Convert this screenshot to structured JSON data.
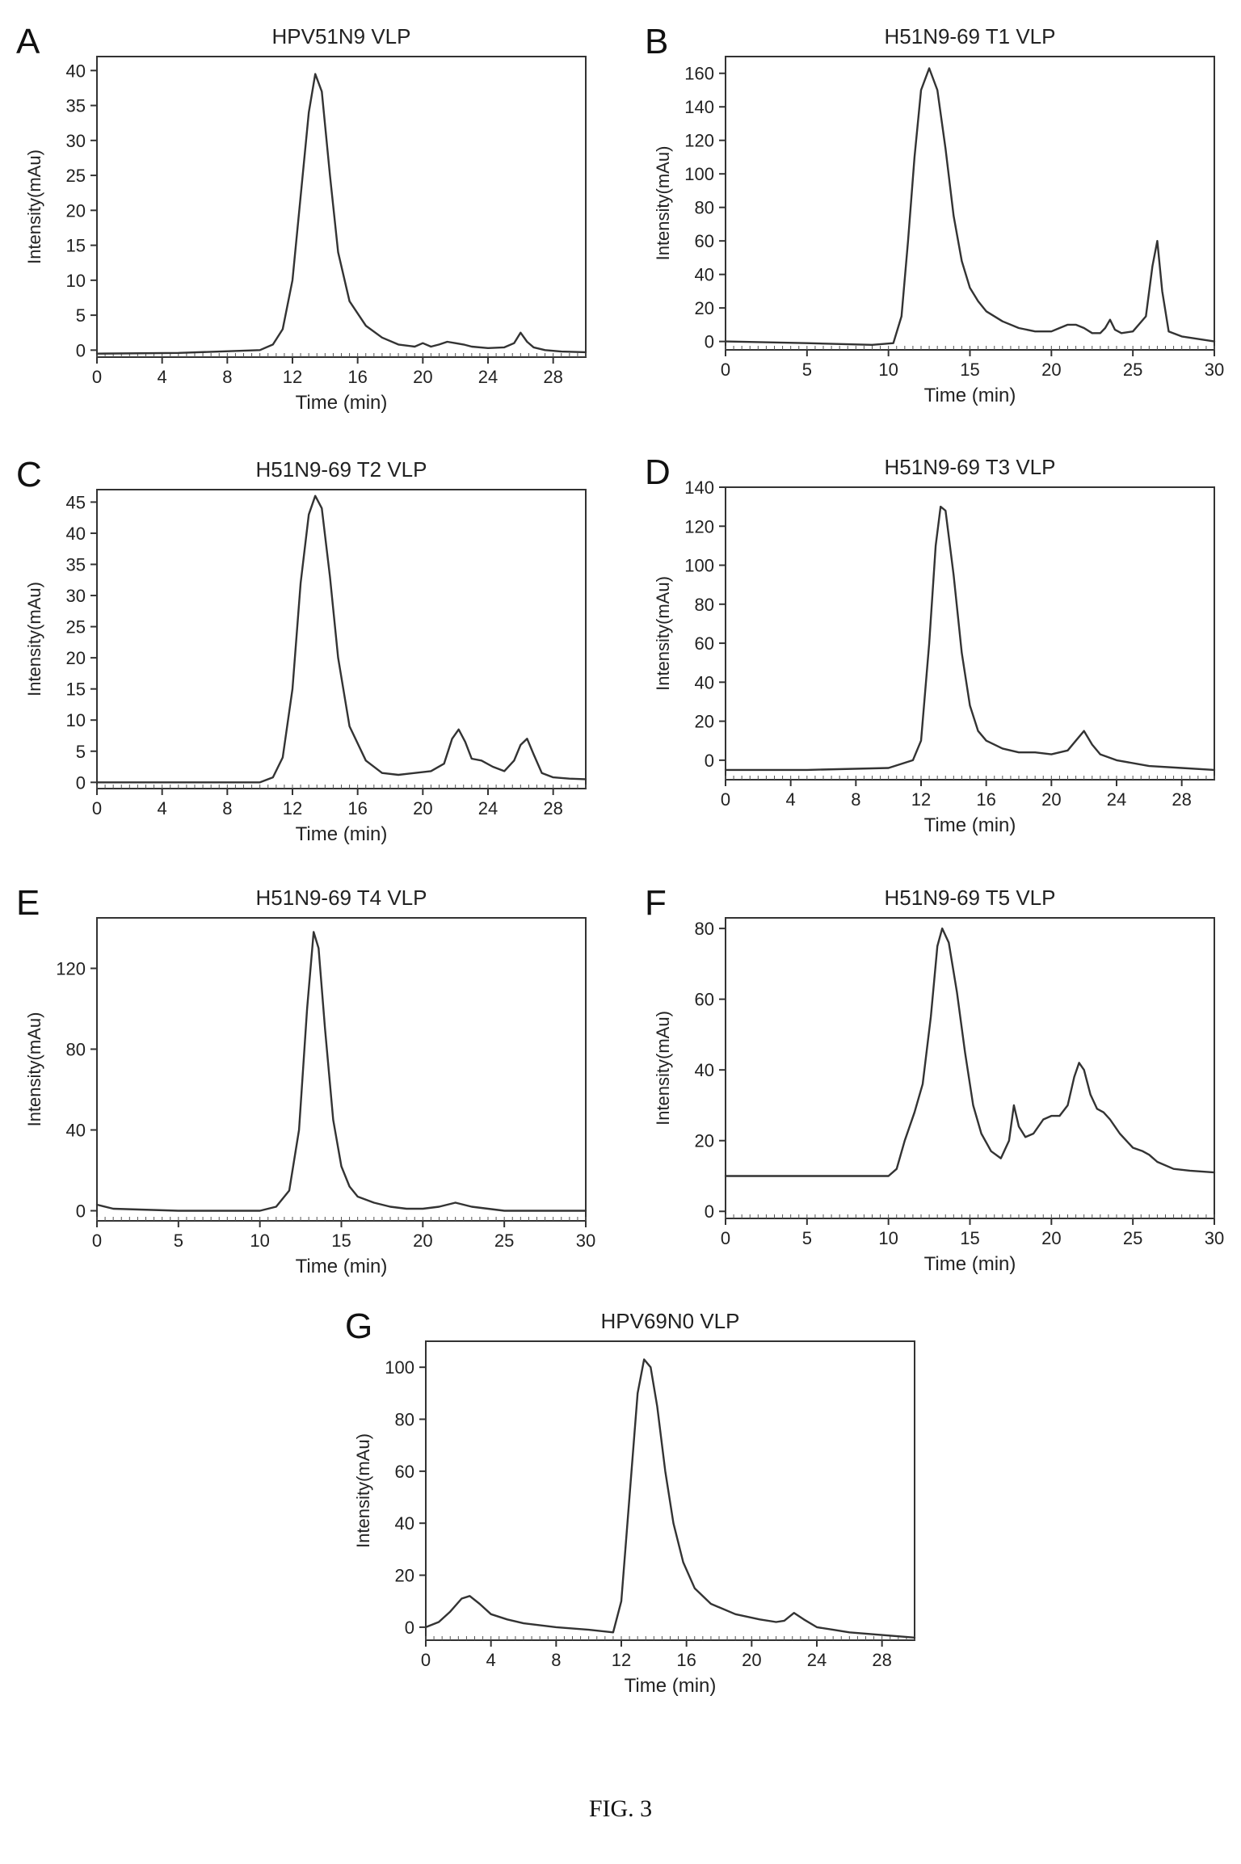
{
  "figure_caption": "FIG. 3",
  "chart_data": [
    {
      "letter": "A",
      "type": "line",
      "title": "HPV51N9 VLP",
      "xlabel": "Time (min)",
      "ylabel": "Intensity(mAu)",
      "xlim": [
        0,
        30
      ],
      "ylim": [
        -1,
        42
      ],
      "xticks": [
        0,
        4,
        8,
        12,
        16,
        20,
        24,
        28
      ],
      "yticks": [
        0,
        5,
        10,
        15,
        20,
        25,
        30,
        35,
        40
      ],
      "series": [
        {
          "x": [
            0,
            5,
            10,
            10.8,
            11.4,
            12,
            12.5,
            13,
            13.4,
            13.8,
            14.3,
            14.8,
            15.5,
            16.5,
            17.5,
            18.5,
            19.5,
            20,
            20.5,
            21,
            21.5,
            22,
            22.5,
            23,
            24,
            25,
            25.6,
            26,
            26.4,
            26.8,
            27.5,
            28.5,
            30
          ],
          "y": [
            -0.5,
            -0.4,
            0,
            0.8,
            3,
            10,
            22,
            34,
            39.5,
            37,
            25,
            14,
            7,
            3.5,
            1.8,
            0.8,
            0.5,
            1,
            0.5,
            0.8,
            1.2,
            1,
            0.8,
            0.5,
            0.3,
            0.4,
            1,
            2.5,
            1.2,
            0.4,
            0,
            -0.2,
            -0.3
          ]
        }
      ]
    },
    {
      "letter": "B",
      "type": "line",
      "title": "H51N9-69 T1 VLP",
      "xlabel": "Time (min)",
      "ylabel": "Intensity(mAu)",
      "xlim": [
        0,
        30
      ],
      "ylim": [
        -5,
        170
      ],
      "xticks": [
        0,
        5,
        10,
        15,
        20,
        25,
        30
      ],
      "yticks": [
        0,
        20,
        40,
        60,
        80,
        100,
        120,
        140,
        160
      ],
      "series": [
        {
          "x": [
            0,
            5,
            9,
            10.3,
            10.8,
            11.2,
            11.6,
            12,
            12.5,
            13,
            13.5,
            14,
            14.5,
            15,
            15.5,
            16,
            17,
            18,
            19,
            20,
            20.5,
            21,
            21.5,
            22,
            22.5,
            23,
            23.3,
            23.6,
            23.9,
            24.3,
            25,
            25.8,
            26.2,
            26.5,
            26.8,
            27.2,
            28,
            30
          ],
          "y": [
            0,
            -1,
            -2,
            -1,
            15,
            60,
            110,
            150,
            163,
            150,
            115,
            75,
            48,
            32,
            24,
            18,
            12,
            8,
            6,
            6,
            8,
            10,
            10,
            8,
            5,
            5,
            8,
            13,
            7,
            5,
            6,
            15,
            45,
            60,
            30,
            6,
            3,
            0
          ]
        }
      ]
    },
    {
      "letter": "C",
      "type": "line",
      "title": "H51N9-69 T2 VLP",
      "xlabel": "Time (min)",
      "ylabel": "Intensity(mAu)",
      "xlim": [
        0,
        30
      ],
      "ylim": [
        -1,
        47
      ],
      "xticks": [
        0,
        4,
        8,
        12,
        16,
        20,
        24,
        28
      ],
      "yticks": [
        0,
        5,
        10,
        15,
        20,
        25,
        30,
        35,
        40,
        45
      ],
      "series": [
        {
          "x": [
            0,
            5,
            10,
            10.8,
            11.4,
            12,
            12.5,
            13,
            13.4,
            13.8,
            14.3,
            14.8,
            15.5,
            16.5,
            17.5,
            18.5,
            19.5,
            20.5,
            21.3,
            21.8,
            22.2,
            22.6,
            23,
            23.6,
            24.3,
            25,
            25.6,
            26,
            26.4,
            26.8,
            27.3,
            28,
            29,
            30
          ],
          "y": [
            0,
            0,
            0,
            0.8,
            4,
            15,
            32,
            43,
            46,
            44,
            33,
            20,
            9,
            3.5,
            1.5,
            1.2,
            1.5,
            1.8,
            3,
            7,
            8.5,
            6.5,
            3.8,
            3.5,
            2.5,
            1.8,
            3.5,
            6,
            7,
            4.5,
            1.5,
            0.8,
            0.6,
            0.5
          ]
        }
      ]
    },
    {
      "letter": "D",
      "type": "line",
      "title": "H51N9-69 T3 VLP",
      "xlabel": "Time (min)",
      "ylabel": "Intensity(mAu)",
      "xlim": [
        0,
        30
      ],
      "ylim": [
        -10,
        140
      ],
      "xticks": [
        0,
        4,
        8,
        12,
        16,
        20,
        24,
        28
      ],
      "yticks": [
        0,
        20,
        40,
        60,
        80,
        100,
        120,
        140
      ],
      "series": [
        {
          "x": [
            0,
            5,
            10,
            11.5,
            12,
            12.5,
            12.9,
            13.2,
            13.5,
            14,
            14.5,
            15,
            15.5,
            16,
            17,
            18,
            19,
            20,
            21,
            21.5,
            22,
            22.5,
            23,
            24,
            26,
            28,
            30
          ],
          "y": [
            -5,
            -5,
            -4,
            0,
            10,
            60,
            110,
            130,
            128,
            95,
            55,
            28,
            15,
            10,
            6,
            4,
            4,
            3,
            5,
            10,
            15,
            8,
            3,
            0,
            -3,
            -4,
            -5
          ]
        }
      ]
    },
    {
      "letter": "E",
      "type": "line",
      "title": "H51N9-69 T4 VLP",
      "xlabel": "Time (min)",
      "ylabel": "Intensity(mAu)",
      "xlim": [
        0,
        30
      ],
      "ylim": [
        -5,
        145
      ],
      "xticks": [
        0,
        5,
        10,
        15,
        20,
        25,
        30
      ],
      "yticks": [
        0,
        40,
        80,
        120
      ],
      "series": [
        {
          "x": [
            0,
            1,
            5,
            10,
            11,
            11.8,
            12.4,
            12.9,
            13.3,
            13.6,
            14,
            14.5,
            15,
            15.5,
            16,
            17,
            18,
            19,
            20,
            21,
            22,
            23,
            24,
            25,
            27,
            30
          ],
          "y": [
            3,
            1,
            0,
            0,
            2,
            10,
            40,
            100,
            138,
            130,
            90,
            45,
            22,
            12,
            7,
            4,
            2,
            1,
            1,
            2,
            4,
            2,
            1,
            0,
            0,
            0
          ]
        }
      ]
    },
    {
      "letter": "F",
      "type": "line",
      "title": "H51N9-69 T5 VLP",
      "xlabel": "Time (min)",
      "ylabel": "Intensity(mAu)",
      "xlim": [
        0,
        30
      ],
      "ylim": [
        -2,
        83
      ],
      "xticks": [
        0,
        5,
        10,
        15,
        20,
        25,
        30
      ],
      "yticks": [
        0,
        20,
        40,
        60,
        80
      ],
      "series": [
        {
          "x": [
            0,
            5,
            10,
            10.5,
            11,
            11.6,
            12.1,
            12.6,
            13,
            13.3,
            13.7,
            14.2,
            14.7,
            15.2,
            15.7,
            16.3,
            16.9,
            17.4,
            17.7,
            18,
            18.4,
            18.9,
            19.5,
            20,
            20.5,
            21,
            21.4,
            21.7,
            22,
            22.4,
            22.8,
            23.2,
            23.6,
            24.2,
            25,
            25.6,
            26,
            26.5,
            27.5,
            28.5,
            30
          ],
          "y": [
            10,
            10,
            10,
            12,
            20,
            28,
            36,
            55,
            75,
            80,
            76,
            62,
            45,
            30,
            22,
            17,
            15,
            20,
            30,
            24,
            21,
            22,
            26,
            27,
            27,
            30,
            38,
            42,
            40,
            33,
            29,
            28,
            26,
            22,
            18,
            17,
            16,
            14,
            12,
            11.5,
            11
          ]
        }
      ]
    },
    {
      "letter": "G",
      "type": "line",
      "title": "HPV69N0 VLP",
      "xlabel": "Time (min)",
      "ylabel": "Intensity(mAu)",
      "xlim": [
        0,
        30
      ],
      "ylim": [
        -5,
        110
      ],
      "xticks": [
        0,
        4,
        8,
        12,
        16,
        20,
        24,
        28
      ],
      "yticks": [
        0,
        20,
        40,
        60,
        80,
        100
      ],
      "series": [
        {
          "x": [
            0,
            0.8,
            1.5,
            2.2,
            2.7,
            3.3,
            4,
            5,
            6,
            8,
            10,
            11.5,
            12,
            12.5,
            13,
            13.4,
            13.8,
            14.2,
            14.7,
            15.2,
            15.8,
            16.5,
            17.5,
            19,
            20.5,
            21.5,
            22,
            22.6,
            23.2,
            24,
            25,
            26,
            28,
            30
          ],
          "y": [
            0,
            2,
            6,
            11,
            12,
            9,
            5,
            3,
            1.5,
            0,
            -1,
            -2,
            10,
            50,
            90,
            103,
            100,
            85,
            60,
            40,
            25,
            15,
            9,
            5,
            3,
            2,
            2.5,
            5.5,
            3,
            0,
            -1,
            -2,
            -3,
            -4
          ]
        }
      ]
    }
  ]
}
